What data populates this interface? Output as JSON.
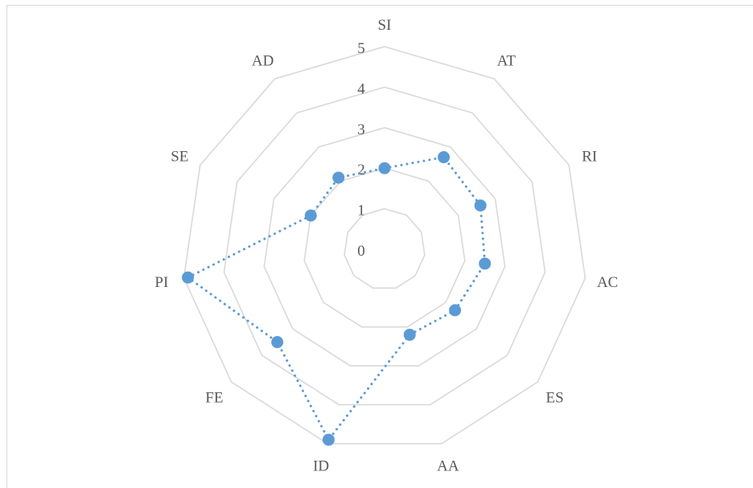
{
  "chart_data": {
    "type": "radar",
    "title": "",
    "categories": [
      "SI",
      "AT",
      "RI",
      "AC",
      "ES",
      "AA",
      "ID",
      "FE",
      "PI",
      "SE",
      "AD"
    ],
    "series": [
      {
        "values": [
          2,
          2.7,
          2.6,
          2.5,
          2.3,
          2.2,
          4.9,
          3.5,
          4.9,
          2,
          2.1
        ]
      }
    ],
    "rlim": [
      0,
      5
    ],
    "ticks": [
      "0",
      "1",
      "2",
      "3",
      "4",
      "5"
    ],
    "grid": true,
    "legend": "none",
    "colors": {
      "series": "#5b9bd5",
      "grid": "#d9d9d9",
      "text": "#595959"
    }
  }
}
